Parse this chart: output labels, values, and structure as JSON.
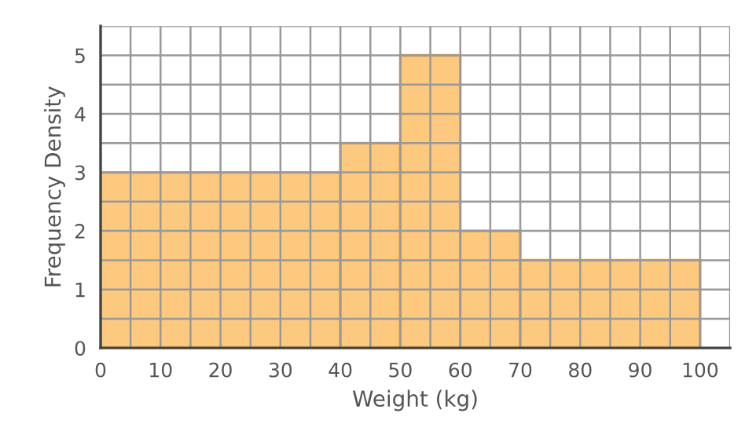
{
  "chart_data": {
    "type": "histogram",
    "xlabel": "Weight (kg)",
    "ylabel": "Frequency Density",
    "bins": [
      0,
      40,
      50,
      60,
      70,
      100
    ],
    "values": [
      3,
      3.5,
      5,
      2,
      1.5
    ],
    "color": "#fcc97e",
    "xlim": [
      0,
      105
    ],
    "ylim": [
      0,
      5.5
    ],
    "xticks": [
      0,
      {
        "value": 5,
        "label": null
      },
      10,
      {
        "value": 15,
        "label": null
      },
      20,
      {
        "value": 25,
        "label": null
      },
      30,
      {
        "value": 35,
        "label": null
      },
      40,
      {
        "value": 45,
        "label": null
      },
      50,
      {
        "value": 55,
        "label": null
      },
      60,
      {
        "value": 65,
        "label": null
      },
      70,
      {
        "value": 75,
        "label": null
      },
      80,
      {
        "value": 85,
        "label": null
      },
      90,
      {
        "value": 95,
        "label": null
      },
      100,
      {
        "value": 105,
        "label": null
      }
    ],
    "yticks": [
      0,
      {
        "value": 0.5,
        "label": null
      },
      1,
      {
        "value": 1.5,
        "label": null
      },
      2,
      {
        "value": 2.5,
        "label": null
      },
      3,
      {
        "value": 3.5,
        "label": null
      },
      4,
      {
        "value": 4.5,
        "label": null
      },
      5,
      {
        "value": 5.5,
        "label": null
      }
    ],
    "grid": true
  }
}
